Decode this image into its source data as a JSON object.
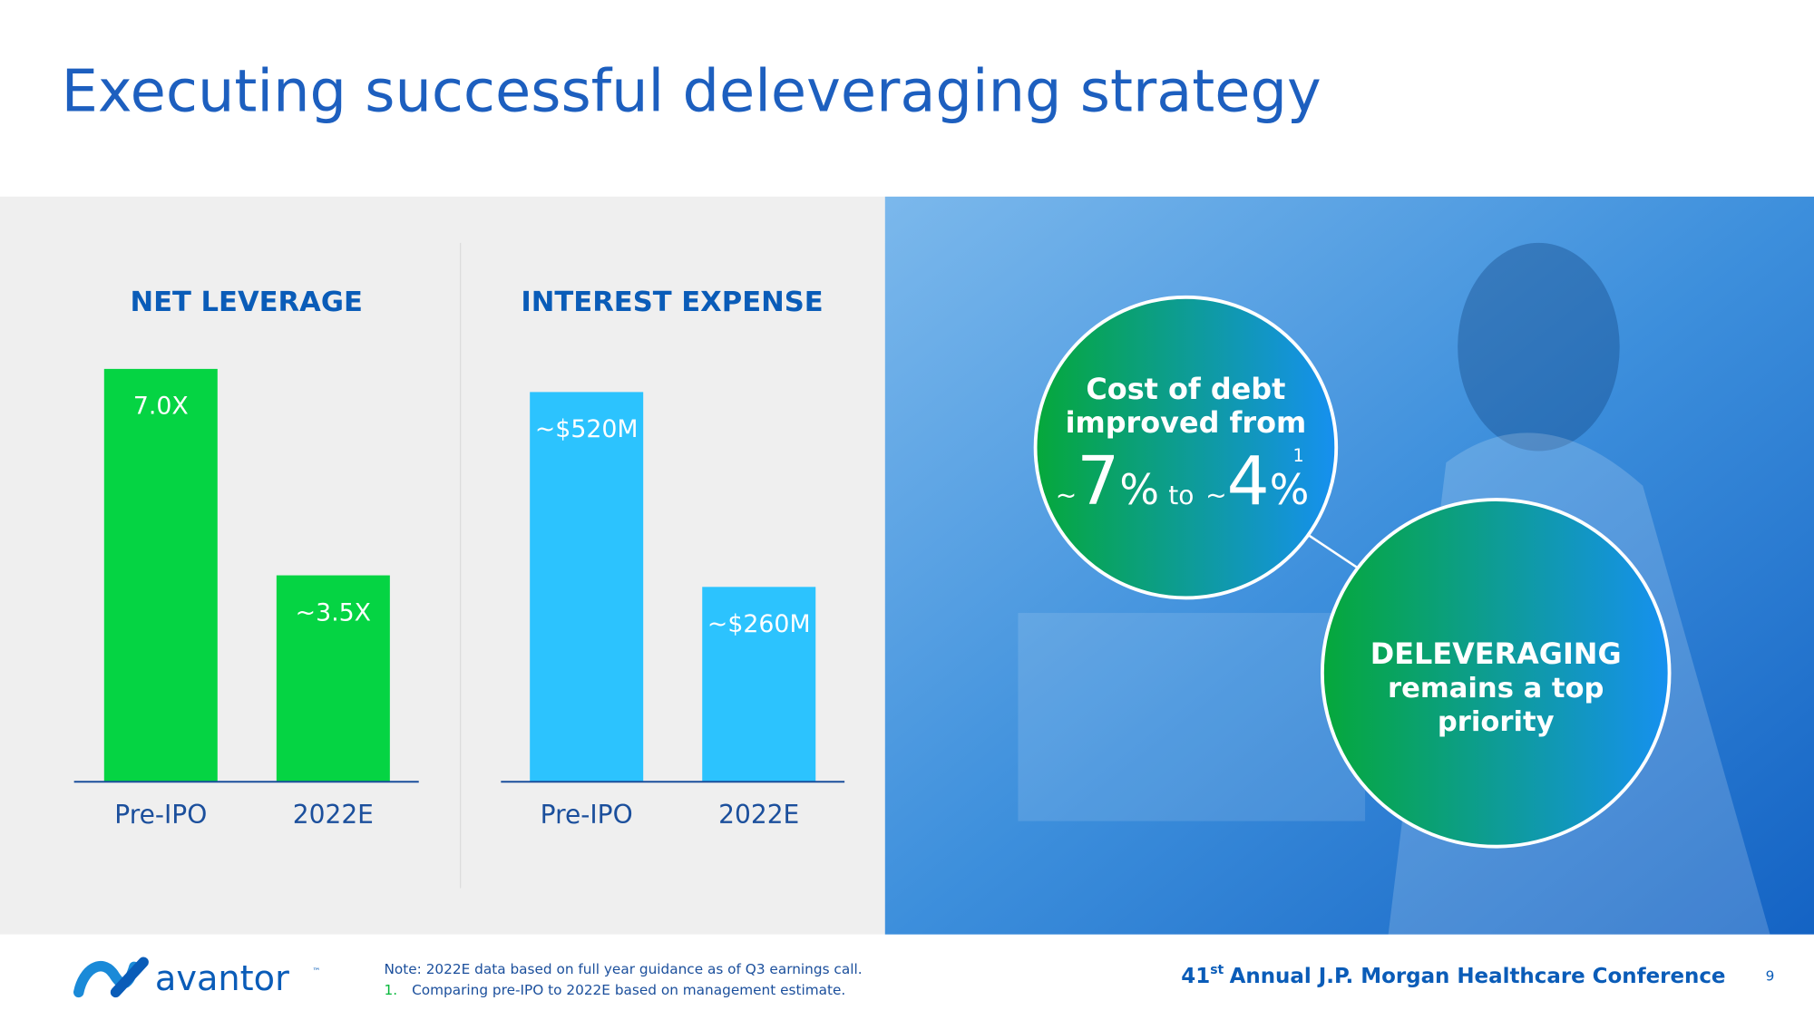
{
  "title": "Executing successful deleveraging strategy",
  "chart_data": [
    {
      "type": "bar",
      "title": "NET LEVERAGE",
      "categories": [
        "Pre-IPO",
        "2022E"
      ],
      "values": [
        7.0,
        3.5
      ],
      "value_labels": [
        "7.0X",
        "~3.5X"
      ],
      "color": "#05d443"
    },
    {
      "type": "bar",
      "title": "INTEREST EXPENSE",
      "categories": [
        "Pre-IPO",
        "2022E"
      ],
      "values": [
        520,
        260
      ],
      "value_labels": [
        "~$520M",
        "~$260M"
      ],
      "color": "#2cc3fe"
    }
  ],
  "cost_circle": {
    "lines": [
      "Cost of debt",
      "improved from"
    ],
    "rate_parts": [
      "~",
      "7",
      "%",
      "to",
      "~",
      "4",
      "%",
      "1"
    ]
  },
  "priority_circle": {
    "lines": [
      "DELEVERAGING",
      "remains a top",
      "priority"
    ]
  },
  "footer": {
    "logo": "avantor",
    "trademark": "™",
    "note": "Note: 2022E data based on full year guidance as of Q3 earnings call.",
    "footnote_number": "1.",
    "footnote": "Comparing pre-IPO to 2022E based on management estimate.",
    "conference_number": "41",
    "conference_suffix": "st",
    "conference": "Annual J.P. Morgan Healthcare Conference",
    "page": "9"
  }
}
